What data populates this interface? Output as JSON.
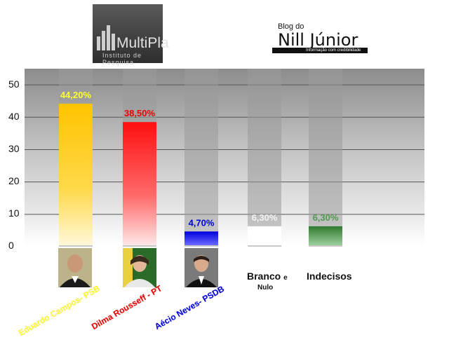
{
  "chart_data": {
    "type": "bar",
    "ylim": [
      0,
      55
    ],
    "yticks": [
      0,
      10,
      20,
      30,
      40,
      50
    ],
    "grid": true,
    "categories": [
      "Eduardo Campos- PSB",
      "Dilma Rousseff - PT",
      "Aécio Neves- PSDB",
      "Branco e Nulo",
      "Indecisos"
    ],
    "values": [
      44.2,
      38.5,
      4.7,
      6.3,
      6.3
    ],
    "data_labels": [
      "44,20%",
      "38,50%",
      "4,70%",
      "6,30%",
      "6,30%"
    ],
    "colors": [
      "#ffc800",
      "#ff1a1a",
      "#1010e0",
      "#ffffff",
      "#3d8a3d"
    ],
    "label_colors": [
      "#ffff33",
      "#ee0000",
      "#0000dd",
      "#f2f2f2",
      "#4e9a4e"
    ],
    "background_bar_value": 55
  },
  "ytick_labels": [
    "0",
    "10",
    "20",
    "30",
    "40",
    "50"
  ],
  "logos": {
    "left_name": "MultiPla",
    "left_sub": "Instituto de Pesquisa",
    "right_line1": "Blog do",
    "right_line2": "Nill Júnior",
    "right_tag": "Informação com credibilidade"
  },
  "candidates": {
    "eduardo": "Eduardo Campos- PSB",
    "dilma": "Dilma Rousseff - PT",
    "aecio": "Aécio Neves- PSDB"
  },
  "other_labels": {
    "branco": "Branco",
    "e": "e",
    "nulo": "Nulo",
    "indecisos": "Indecisos"
  }
}
